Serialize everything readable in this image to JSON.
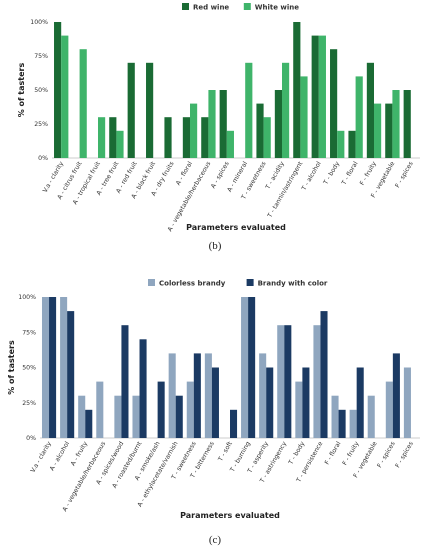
{
  "chart_data": [
    {
      "type": "bar",
      "panel": "b",
      "caption": "(b)",
      "xlabel": "Parameters evaluated",
      "ylabel": "% of tasters",
      "ylim": [
        0,
        100
      ],
      "yticks": [
        "0%",
        "25%",
        "50%",
        "75%",
        "100%"
      ],
      "legend_position": "top-center",
      "categories": [
        "V.a - clarity",
        "A - citrus fruit",
        "A - tropical fruit",
        "A - tree fruit",
        "A - red fruit",
        "A - black fruit",
        "A - dry fruits",
        "A - floral",
        "A - vegetable/herbaceous",
        "A - spices",
        "A - mineral",
        "T - sweetness",
        "T - acidity",
        "T - tannin/astringent",
        "T - alcohol",
        "T - body",
        "T - floral",
        "F - fruity",
        "F - vegetable",
        "F - spices"
      ],
      "series": [
        {
          "name": "Red wine",
          "color": "#1a6b34",
          "values": [
            100,
            0,
            0,
            30,
            70,
            70,
            30,
            30,
            30,
            50,
            0,
            40,
            50,
            100,
            90,
            80,
            20,
            70,
            40,
            50
          ]
        },
        {
          "name": "White wine",
          "color": "#3fb46a",
          "values": [
            90,
            80,
            30,
            20,
            0,
            0,
            0,
            40,
            50,
            20,
            70,
            30,
            70,
            60,
            90,
            20,
            60,
            40,
            50,
            0
          ]
        }
      ]
    },
    {
      "type": "bar",
      "panel": "c",
      "caption": "(c)",
      "xlabel": "Parameters evaluated",
      "ylabel": "% of tasters",
      "ylim": [
        0,
        100
      ],
      "yticks": [
        "0%",
        "25%",
        "50%",
        "75%",
        "100%"
      ],
      "legend_position": "top-center",
      "categories": [
        "V.a - clarity",
        "A - alcohol",
        "A - fruity",
        "A - vegetable/herbaceous",
        "A - spices/wood",
        "A - roasted/burnt",
        "A - smoke/ash",
        "A - ethylacetate/varnish",
        "T - sweetness",
        "T - bitterness",
        "T - soft",
        "T - burning",
        "T - asperity",
        "T - astringency",
        "T - body",
        "T - persistence",
        "F - floral",
        "F - fruity",
        "F - vegetable",
        "F - spices",
        "F - spices"
      ],
      "series": [
        {
          "name": "Colorless brandy",
          "color": "#8fa6bf",
          "values": [
            100,
            100,
            30,
            40,
            30,
            30,
            0,
            60,
            40,
            60,
            0,
            100,
            60,
            80,
            40,
            80,
            30,
            20,
            30,
            40,
            50
          ]
        },
        {
          "name": "Brandy with color",
          "color": "#1b3a63",
          "values": [
            100,
            90,
            20,
            0,
            80,
            70,
            40,
            30,
            60,
            50,
            20,
            100,
            50,
            80,
            50,
            90,
            20,
            50,
            0,
            60,
            0
          ]
        }
      ]
    }
  ]
}
